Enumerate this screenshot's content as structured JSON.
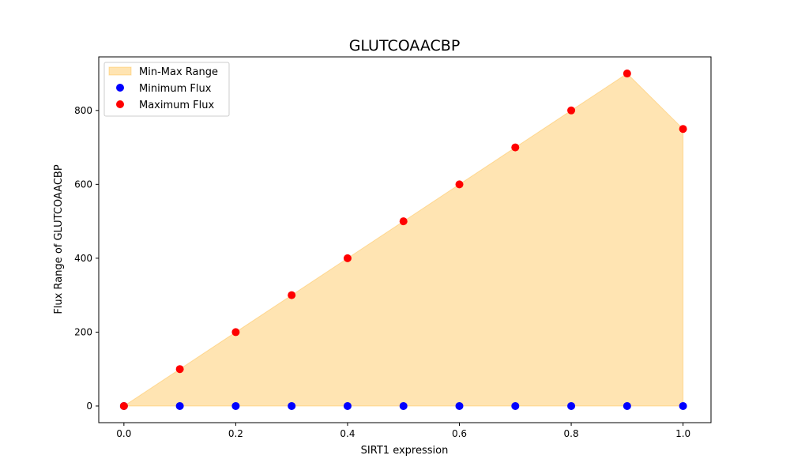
{
  "chart_data": {
    "type": "scatter",
    "title": "GLUTCOAACBP",
    "xlabel": "SIRT1 expression",
    "ylabel": "Flux Range of GLUTCOAACBP",
    "xlim": [
      -0.045,
      1.05
    ],
    "ylim": [
      -45,
      945
    ],
    "xticks": [
      0.0,
      0.2,
      0.4,
      0.6,
      0.8,
      1.0
    ],
    "xtick_labels": [
      "0.0",
      "0.2",
      "0.4",
      "0.6",
      "0.8",
      "1.0"
    ],
    "yticks": [
      0,
      200,
      400,
      600,
      800
    ],
    "ytick_labels": [
      "0",
      "200",
      "400",
      "600",
      "800"
    ],
    "grid": false,
    "legend_position": "top-left",
    "x": [
      0.0,
      0.1,
      0.2,
      0.3,
      0.4,
      0.5,
      0.6,
      0.7,
      0.8,
      0.9,
      1.0
    ],
    "series": [
      {
        "name": "Minimum Flux",
        "kind": "scatter",
        "color": "#0000ff",
        "values": [
          0,
          0,
          0,
          0,
          0,
          0,
          0,
          0,
          0,
          0,
          0
        ]
      },
      {
        "name": "Maximum Flux",
        "kind": "scatter",
        "color": "#ff0000",
        "values": [
          0,
          100,
          200,
          300,
          400,
          500,
          600,
          700,
          800,
          900,
          750
        ]
      }
    ],
    "band": {
      "name": "Min-Max Range",
      "color": "#ffa500",
      "lower_series": "Minimum Flux",
      "upper_series": "Maximum Flux"
    }
  }
}
